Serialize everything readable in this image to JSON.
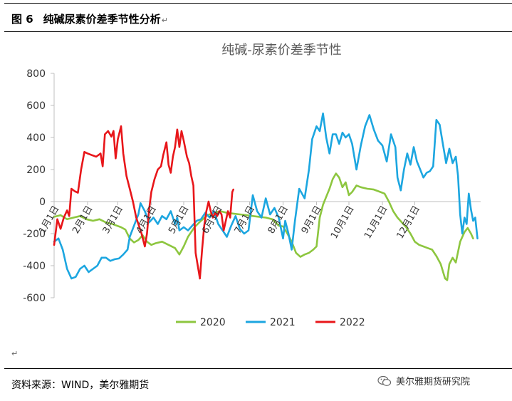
{
  "header": {
    "figure_number": "图 6",
    "caption": "纯碱尿素价差季节性分析",
    "para_mark": "↵"
  },
  "source_text": "资料来源：WIND，美尔雅期货",
  "watermark_text": "美尔雅期货研究院",
  "stray_mark": "↵",
  "colors": {
    "2020": "#8DC63F",
    "2021": "#1CA6E0",
    "2022": "#E8161A",
    "axis": "#BFBFBF"
  },
  "chart_data": {
    "type": "line",
    "title": "纯碱-尿素价差季节性",
    "xlabel": "",
    "ylabel": "",
    "ylim": [
      -600,
      800
    ],
    "yticks": [
      -600,
      -400,
      -200,
      0,
      200,
      400,
      600,
      800
    ],
    "grid": false,
    "legend_position": "bottom",
    "xticks": [
      {
        "label": "1月1日",
        "day": 0
      },
      {
        "label": "2月1日",
        "day": 31
      },
      {
        "label": "3月1日",
        "day": 59
      },
      {
        "label": "4月1日",
        "day": 90
      },
      {
        "label": "5月1日",
        "day": 120
      },
      {
        "label": "6月1日",
        "day": 151
      },
      {
        "label": "7月1日",
        "day": 181
      },
      {
        "label": "8月1日",
        "day": 212
      },
      {
        "label": "9月1日",
        "day": 243
      },
      {
        "label": "10月1日",
        "day": 273
      },
      {
        "label": "11月1日",
        "day": 304
      },
      {
        "label": "12月1日",
        "day": 334
      }
    ],
    "series": [
      {
        "name": "2020",
        "points": [
          [
            0,
            -95
          ],
          [
            6,
            -85
          ],
          [
            12,
            -110
          ],
          [
            18,
            -100
          ],
          [
            24,
            -90
          ],
          [
            30,
            -110
          ],
          [
            36,
            -120
          ],
          [
            42,
            -110
          ],
          [
            48,
            -130
          ],
          [
            54,
            -140
          ],
          [
            58,
            -150
          ],
          [
            62,
            -160
          ],
          [
            66,
            -175
          ],
          [
            70,
            -230
          ],
          [
            74,
            -255
          ],
          [
            78,
            -240
          ],
          [
            82,
            -210
          ],
          [
            86,
            -250
          ],
          [
            90,
            -270
          ],
          [
            94,
            -260
          ],
          [
            100,
            -250
          ],
          [
            106,
            -270
          ],
          [
            112,
            -290
          ],
          [
            116,
            -330
          ],
          [
            120,
            -280
          ],
          [
            124,
            -220
          ],
          [
            130,
            -160
          ],
          [
            136,
            -120
          ],
          [
            142,
            -85
          ],
          [
            148,
            -70
          ],
          [
            154,
            -60
          ],
          [
            160,
            -70
          ],
          [
            166,
            -75
          ],
          [
            172,
            -80
          ],
          [
            178,
            -85
          ],
          [
            184,
            -90
          ],
          [
            190,
            -95
          ],
          [
            196,
            -100
          ],
          [
            202,
            -110
          ],
          [
            208,
            -150
          ],
          [
            212,
            -155
          ],
          [
            216,
            -200
          ],
          [
            220,
            -250
          ],
          [
            224,
            -320
          ],
          [
            228,
            -345
          ],
          [
            232,
            -330
          ],
          [
            236,
            -320
          ],
          [
            240,
            -300
          ],
          [
            243,
            -280
          ],
          [
            246,
            -100
          ],
          [
            249,
            -20
          ],
          [
            252,
            30
          ],
          [
            255,
            80
          ],
          [
            258,
            140
          ],
          [
            261,
            175
          ],
          [
            264,
            150
          ],
          [
            267,
            90
          ],
          [
            270,
            120
          ],
          [
            273,
            40
          ],
          [
            276,
            60
          ],
          [
            280,
            100
          ],
          [
            284,
            90
          ],
          [
            290,
            80
          ],
          [
            296,
            75
          ],
          [
            302,
            60
          ],
          [
            306,
            50
          ],
          [
            310,
            0
          ],
          [
            314,
            -60
          ],
          [
            318,
            -100
          ],
          [
            322,
            -130
          ],
          [
            326,
            -160
          ],
          [
            330,
            -200
          ],
          [
            334,
            -250
          ],
          [
            338,
            -270
          ],
          [
            342,
            -280
          ],
          [
            346,
            -290
          ],
          [
            350,
            -300
          ],
          [
            354,
            -340
          ],
          [
            358,
            -390
          ],
          [
            362,
            -480
          ],
          [
            364,
            -490
          ],
          [
            366,
            -390
          ],
          [
            369,
            -350
          ],
          [
            372,
            -380
          ],
          [
            376,
            -250
          ],
          [
            380,
            -190
          ],
          [
            383,
            -165
          ],
          [
            386,
            -200
          ],
          [
            388,
            -230
          ]
        ]
      },
      {
        "name": "2021",
        "points": [
          [
            0,
            -250
          ],
          [
            4,
            -230
          ],
          [
            8,
            -300
          ],
          [
            12,
            -420
          ],
          [
            16,
            -480
          ],
          [
            20,
            -470
          ],
          [
            24,
            -420
          ],
          [
            28,
            -400
          ],
          [
            32,
            -440
          ],
          [
            36,
            -420
          ],
          [
            40,
            -400
          ],
          [
            44,
            -350
          ],
          [
            48,
            -350
          ],
          [
            52,
            -370
          ],
          [
            56,
            -360
          ],
          [
            60,
            -355
          ],
          [
            64,
            -330
          ],
          [
            68,
            -300
          ],
          [
            70,
            -220
          ],
          [
            74,
            -150
          ],
          [
            78,
            -80
          ],
          [
            80,
            -10
          ],
          [
            84,
            -60
          ],
          [
            88,
            -130
          ],
          [
            92,
            -100
          ],
          [
            96,
            -140
          ],
          [
            100,
            -90
          ],
          [
            104,
            -110
          ],
          [
            108,
            -60
          ],
          [
            112,
            -140
          ],
          [
            114,
            -100
          ],
          [
            116,
            -180
          ],
          [
            120,
            -160
          ],
          [
            124,
            -180
          ],
          [
            128,
            -150
          ],
          [
            132,
            -120
          ],
          [
            136,
            -110
          ],
          [
            140,
            -70
          ],
          [
            144,
            -100
          ],
          [
            148,
            -60
          ],
          [
            152,
            -140
          ],
          [
            156,
            -180
          ],
          [
            160,
            -220
          ],
          [
            164,
            -150
          ],
          [
            168,
            -90
          ],
          [
            172,
            -170
          ],
          [
            176,
            -200
          ],
          [
            180,
            -180
          ],
          [
            184,
            40
          ],
          [
            188,
            -60
          ],
          [
            192,
            -100
          ],
          [
            196,
            20
          ],
          [
            200,
            -80
          ],
          [
            204,
            -40
          ],
          [
            208,
            -100
          ],
          [
            212,
            -230
          ],
          [
            214,
            -120
          ],
          [
            217,
            -200
          ],
          [
            220,
            -300
          ],
          [
            223,
            -120
          ],
          [
            227,
            80
          ],
          [
            232,
            20
          ],
          [
            236,
            200
          ],
          [
            239,
            390
          ],
          [
            243,
            470
          ],
          [
            246,
            440
          ],
          [
            249,
            550
          ],
          [
            252,
            400
          ],
          [
            255,
            300
          ],
          [
            258,
            420
          ],
          [
            261,
            420
          ],
          [
            264,
            360
          ],
          [
            267,
            430
          ],
          [
            270,
            400
          ],
          [
            273,
            420
          ],
          [
            276,
            360
          ],
          [
            280,
            200
          ],
          [
            284,
            350
          ],
          [
            288,
            470
          ],
          [
            292,
            540
          ],
          [
            296,
            450
          ],
          [
            300,
            380
          ],
          [
            304,
            350
          ],
          [
            308,
            250
          ],
          [
            312,
            420
          ],
          [
            316,
            340
          ],
          [
            318,
            150
          ],
          [
            321,
            70
          ],
          [
            324,
            200
          ],
          [
            327,
            300
          ],
          [
            330,
            230
          ],
          [
            333,
            340
          ],
          [
            336,
            250
          ],
          [
            339,
            200
          ],
          [
            342,
            150
          ],
          [
            345,
            180
          ],
          [
            348,
            190
          ],
          [
            351,
            220
          ],
          [
            354,
            510
          ],
          [
            357,
            480
          ],
          [
            360,
            360
          ],
          [
            363,
            240
          ],
          [
            366,
            330
          ],
          [
            369,
            240
          ],
          [
            372,
            280
          ],
          [
            374,
            160
          ],
          [
            376,
            -80
          ],
          [
            378,
            -200
          ],
          [
            380,
            -100
          ],
          [
            382,
            -140
          ],
          [
            384,
            50
          ],
          [
            386,
            -50
          ],
          [
            388,
            -120
          ],
          [
            390,
            -100
          ],
          [
            392,
            -230
          ]
        ]
      },
      {
        "name": "2022",
        "points": [
          [
            0,
            -270
          ],
          [
            3,
            -110
          ],
          [
            6,
            -170
          ],
          [
            9,
            -100
          ],
          [
            12,
            -55
          ],
          [
            14,
            -90
          ],
          [
            16,
            80
          ],
          [
            19,
            65
          ],
          [
            22,
            55
          ],
          [
            25,
            200
          ],
          [
            28,
            310
          ],
          [
            31,
            300
          ],
          [
            35,
            290
          ],
          [
            39,
            280
          ],
          [
            43,
            300
          ],
          [
            45,
            220
          ],
          [
            47,
            420
          ],
          [
            50,
            440
          ],
          [
            53,
            405
          ],
          [
            55,
            440
          ],
          [
            57,
            270
          ],
          [
            59,
            390
          ],
          [
            62,
            470
          ],
          [
            64,
            300
          ],
          [
            67,
            160
          ],
          [
            70,
            80
          ],
          [
            73,
            0
          ],
          [
            76,
            -100
          ],
          [
            78,
            -140
          ],
          [
            81,
            -200
          ],
          [
            84,
            -280
          ],
          [
            86,
            -200
          ],
          [
            88,
            -50
          ],
          [
            90,
            60
          ],
          [
            93,
            140
          ],
          [
            96,
            200
          ],
          [
            99,
            220
          ],
          [
            101,
            290
          ],
          [
            104,
            370
          ],
          [
            106,
            230
          ],
          [
            108,
            180
          ],
          [
            110,
            280
          ],
          [
            112,
            340
          ],
          [
            114,
            450
          ],
          [
            116,
            340
          ],
          [
            118,
            440
          ],
          [
            120,
            380
          ],
          [
            123,
            280
          ],
          [
            125,
            240
          ],
          [
            127,
            160
          ],
          [
            129,
            100
          ],
          [
            131,
            -320
          ],
          [
            133,
            -400
          ],
          [
            135,
            -480
          ],
          [
            137,
            -300
          ],
          [
            139,
            -150
          ],
          [
            141,
            -60
          ],
          [
            143,
            0
          ],
          [
            145,
            -60
          ],
          [
            147,
            -100
          ],
          [
            149,
            -70
          ],
          [
            151,
            -90
          ],
          [
            153,
            -60
          ],
          [
            155,
            -80
          ],
          [
            157,
            -180
          ],
          [
            159,
            -120
          ],
          [
            161,
            -60
          ],
          [
            163,
            -100
          ],
          [
            165,
            60
          ],
          [
            166,
            75
          ]
        ]
      }
    ]
  }
}
